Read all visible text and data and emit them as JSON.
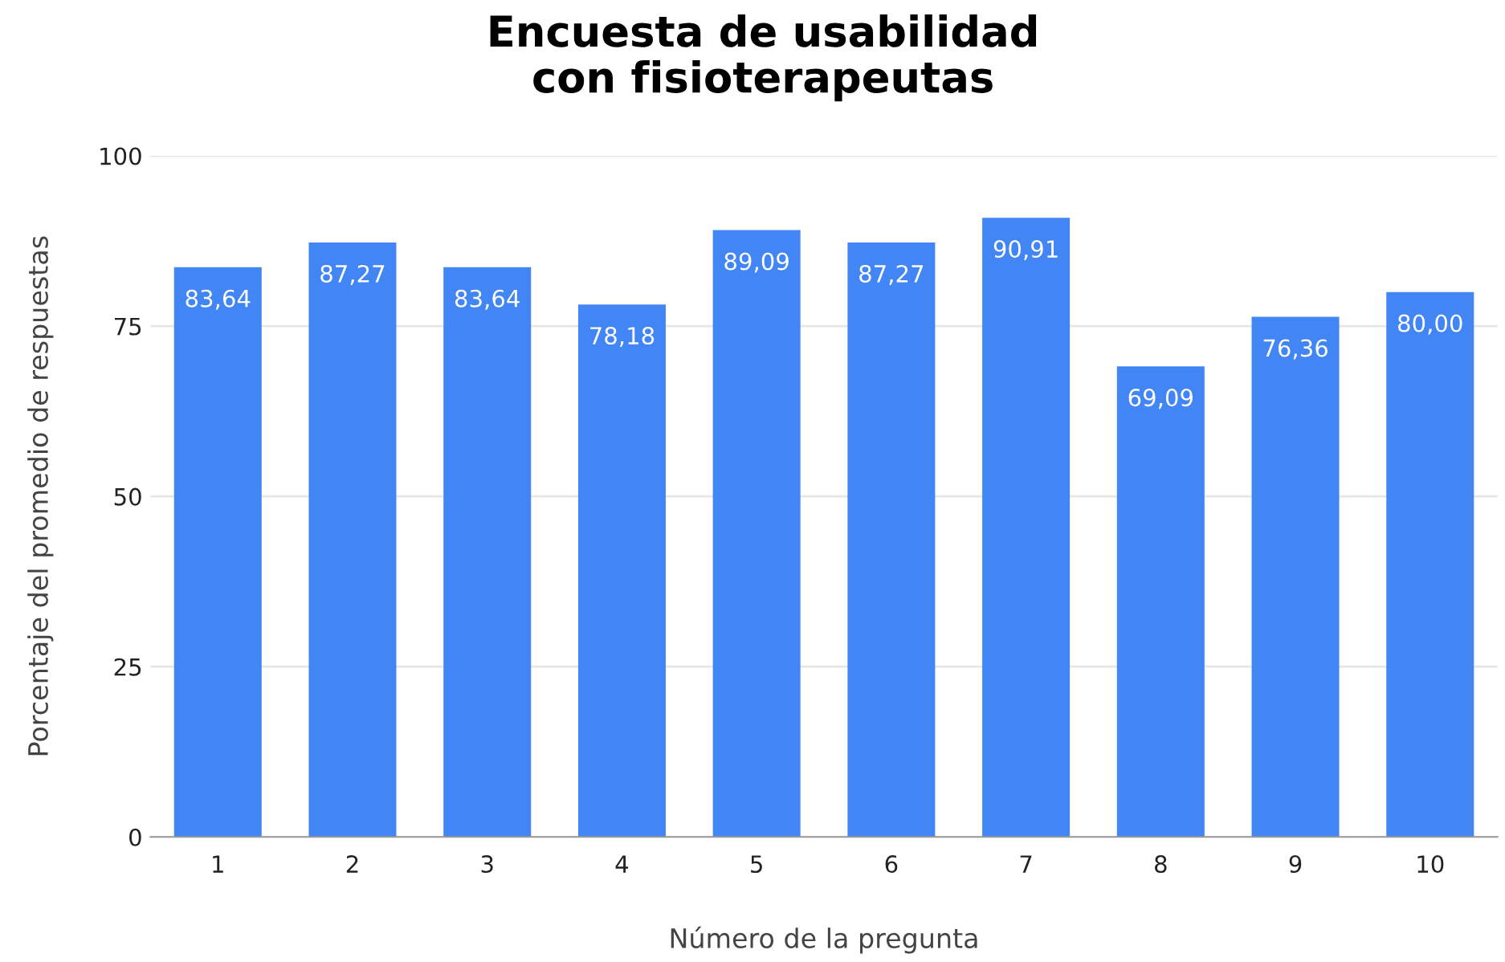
{
  "chart_data": {
    "type": "bar",
    "title": "Encuesta de usabilidad\ncon fisioterapeutas",
    "xlabel": "Número de la pregunta",
    "ylabel": "Porcentaje del promedio de respuestas",
    "categories": [
      "1",
      "2",
      "3",
      "4",
      "5",
      "6",
      "7",
      "8",
      "9",
      "10"
    ],
    "values": [
      83.64,
      87.27,
      83.64,
      78.18,
      89.09,
      87.27,
      90.91,
      69.09,
      76.36,
      80.0
    ],
    "value_labels": [
      "83,64",
      "87,27",
      "83,64",
      "78,18",
      "89,09",
      "87,27",
      "90,91",
      "69,09",
      "76,36",
      "80,00"
    ],
    "color": "#4285f4",
    "ylim": [
      0,
      100
    ],
    "yticks": [
      0,
      25,
      50,
      75,
      100
    ],
    "grid": "y"
  }
}
